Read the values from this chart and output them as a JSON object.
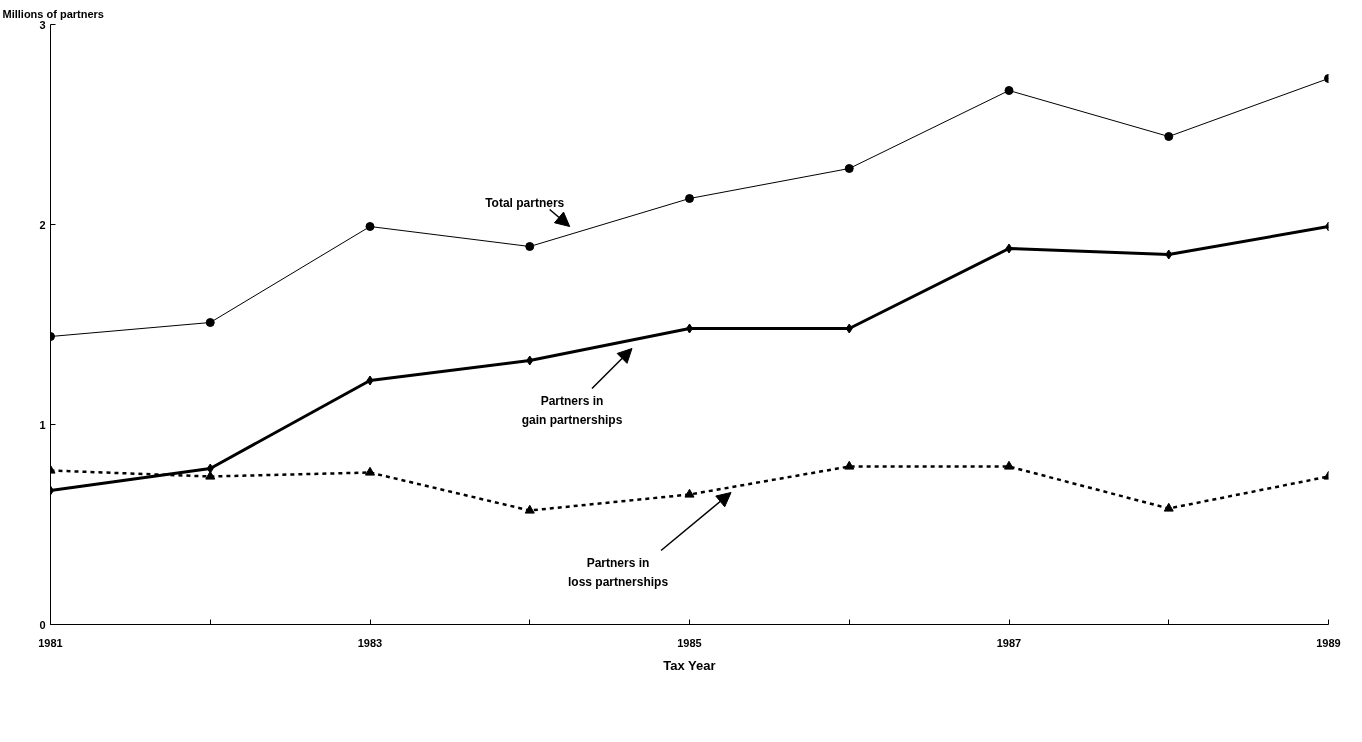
{
  "chart_data": {
    "type": "line",
    "ylabel": "Millions of partners",
    "xlabel": "Tax Year",
    "x": [
      1981,
      1982,
      1983,
      1984,
      1985,
      1986,
      1987,
      1988,
      1989
    ],
    "series": [
      {
        "name": "Total partners",
        "color": "#000000",
        "marker": "circle",
        "line_style": "solid",
        "values": [
          1.44,
          1.51,
          1.99,
          1.89,
          2.13,
          2.28,
          2.67,
          2.44,
          2.73
        ]
      },
      {
        "name": "Partners in\ngain partnerships",
        "color": "#000000",
        "marker": "diamond",
        "line_style": "solid",
        "values": [
          0.67,
          0.78,
          1.22,
          1.32,
          1.48,
          1.48,
          1.88,
          1.85,
          1.99
        ]
      },
      {
        "name": "Partners in\nloss partnerships",
        "color": "#000000",
        "marker": "triangle",
        "line_style": "dashed",
        "values": [
          0.77,
          0.74,
          0.76,
          0.57,
          0.65,
          0.79,
          0.79,
          0.58,
          0.74
        ]
      }
    ],
    "xlim": [
      1981,
      1989
    ],
    "ylim": [
      0,
      3
    ],
    "xticks": [
      1981,
      {
        "value": 1982,
        "label": null
      },
      1983,
      {
        "value": 1984,
        "label": null
      },
      1985,
      {
        "value": 1986,
        "label": null
      },
      1987,
      {
        "value": 1988,
        "label": null
      },
      1989
    ],
    "yticks": [
      0,
      1,
      2,
      3
    ],
    "grid": false
  }
}
